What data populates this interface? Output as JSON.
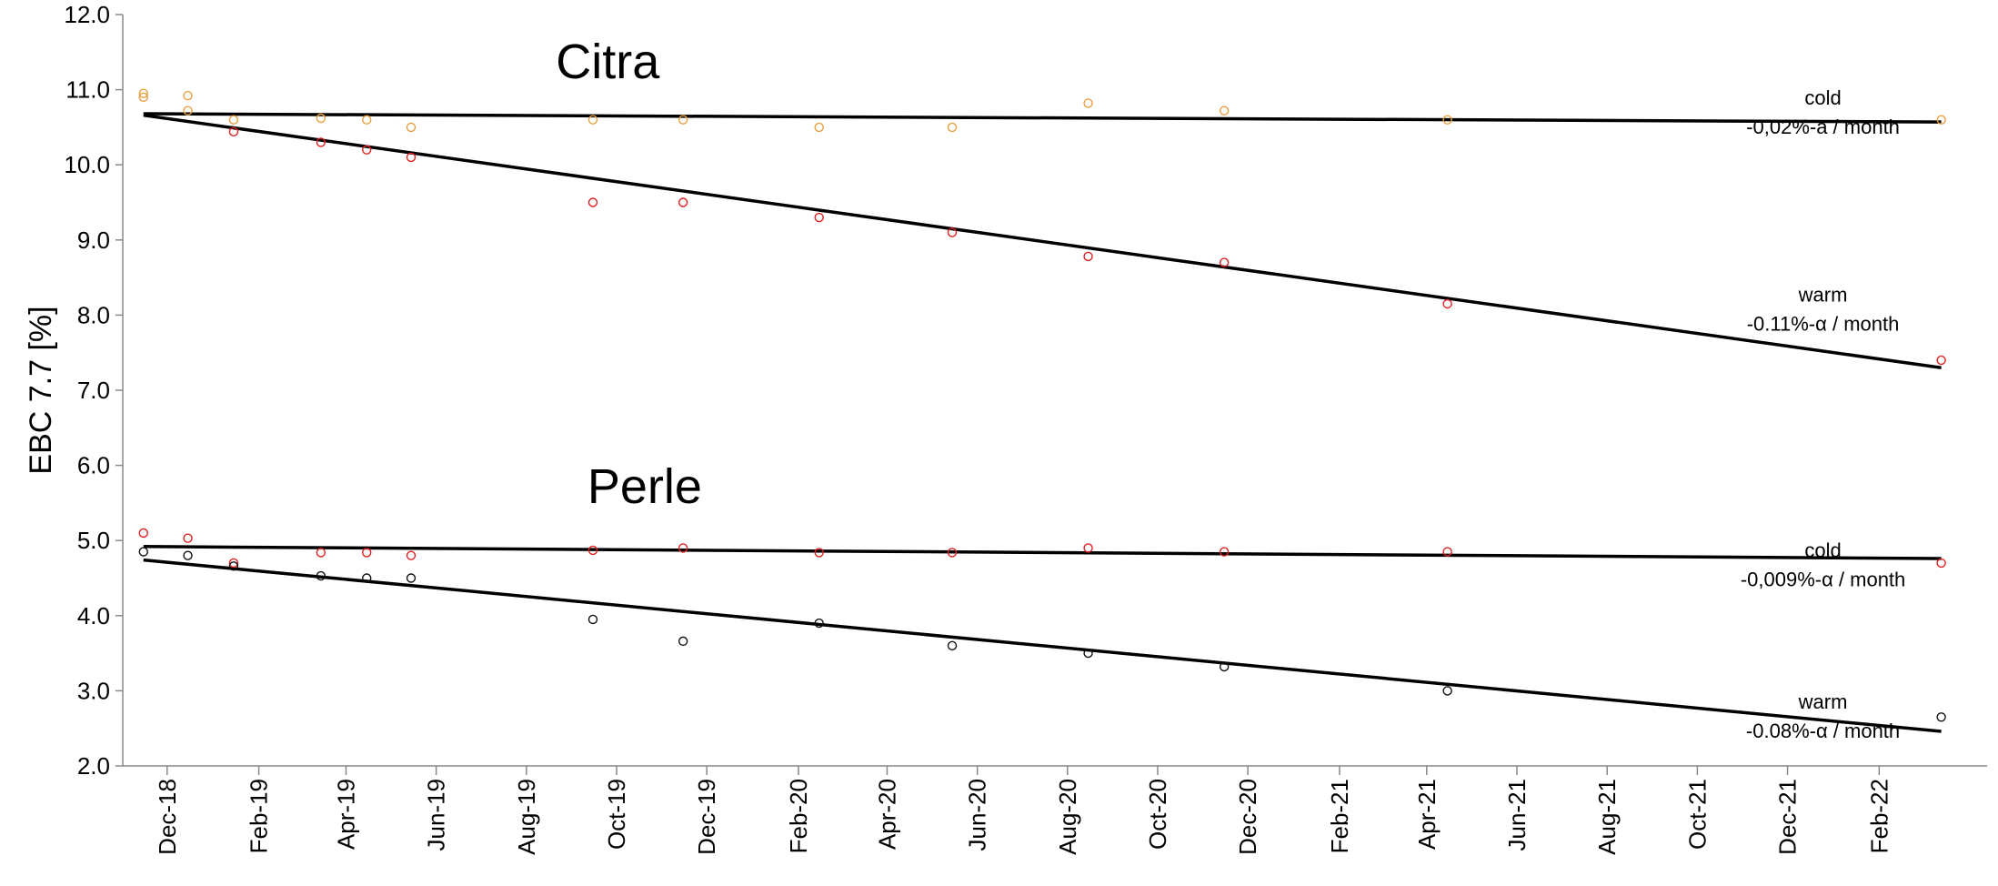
{
  "chart_data": {
    "type": "scatter",
    "ylabel": "EBC 7.7 [%]",
    "ylim": [
      2.0,
      12.0
    ],
    "yticks": [
      "2.0",
      "3.0",
      "4.0",
      "5.0",
      "6.0",
      "7.0",
      "8.0",
      "9.0",
      "10.0",
      "11.0",
      "12.0"
    ],
    "xticks": [
      "Dec-18",
      "Feb-19",
      "Apr-19",
      "Jun-19",
      "Aug-19",
      "Oct-19",
      "Dec-19",
      "Feb-20",
      "Apr-20",
      "Jun-20",
      "Aug-20",
      "Oct-20",
      "Dec-20",
      "Feb-21",
      "Apr-21",
      "Jun-21",
      "Aug-21",
      "Oct-21",
      "Dec-21",
      "Feb-22"
    ],
    "xlim": [
      "2018-11-01",
      "2022-04-15"
    ],
    "grid": false,
    "groups": [
      {
        "title": "Citra",
        "title_x": "2019-09-25",
        "title_y": 11.15
      },
      {
        "title": "Perle",
        "title_x": "2019-10-20",
        "title_y": 5.5
      }
    ],
    "annotations": [
      {
        "lines": [
          "cold",
          "-0,02%-a / month"
        ],
        "x": "2021-12-25",
        "y": 10.8
      },
      {
        "lines": [
          "warm",
          "-0.11%-α / month"
        ],
        "x": "2021-12-25",
        "y": 8.18
      },
      {
        "lines": [
          "cold",
          "-0,009%-α / month"
        ],
        "x": "2021-12-25",
        "y": 4.78
      },
      {
        "lines": [
          "warm",
          "-0.08%-α / month"
        ],
        "x": "2021-12-25",
        "y": 2.76
      }
    ],
    "series": [
      {
        "color": "#E8A040",
        "points": [
          [
            "2018-11-15",
            10.95
          ],
          [
            "2018-11-15",
            10.9
          ],
          [
            "2018-12-15",
            10.92
          ],
          [
            "2018-12-15",
            10.72
          ],
          [
            "2019-01-15",
            10.6
          ],
          [
            "2019-03-15",
            10.62
          ],
          [
            "2019-04-15",
            10.6
          ],
          [
            "2019-05-15",
            10.5
          ],
          [
            "2019-09-15",
            10.6
          ],
          [
            "2019-11-15",
            10.6
          ],
          [
            "2020-02-15",
            10.5
          ],
          [
            "2020-05-15",
            10.5
          ],
          [
            "2020-08-15",
            10.82
          ],
          [
            "2020-11-15",
            10.72
          ],
          [
            "2021-04-15",
            10.6
          ],
          [
            "2022-03-15",
            10.6
          ]
        ],
        "trend": [
          [
            "2018-11-15",
            10.68
          ],
          [
            "2022-03-15",
            10.57
          ]
        ]
      },
      {
        "color": "#E02020",
        "points": [
          [
            "2019-01-15",
            10.44
          ],
          [
            "2019-03-15",
            10.3
          ],
          [
            "2019-04-15",
            10.2
          ],
          [
            "2019-05-15",
            10.1
          ],
          [
            "2019-09-15",
            9.5
          ],
          [
            "2019-11-15",
            9.5
          ],
          [
            "2020-02-15",
            9.3
          ],
          [
            "2020-05-15",
            9.1
          ],
          [
            "2020-08-15",
            8.78
          ],
          [
            "2020-11-15",
            8.7
          ],
          [
            "2021-04-15",
            8.15
          ],
          [
            "2022-03-15",
            7.4
          ]
        ],
        "trend": [
          [
            "2018-11-15",
            10.66
          ],
          [
            "2022-03-15",
            7.3
          ]
        ]
      },
      {
        "color": "#E02020",
        "points": [
          [
            "2018-11-15",
            5.1
          ],
          [
            "2018-12-15",
            5.03
          ],
          [
            "2019-01-15",
            4.7
          ],
          [
            "2019-03-15",
            4.84
          ],
          [
            "2019-04-15",
            4.84
          ],
          [
            "2019-05-15",
            4.8
          ],
          [
            "2019-09-15",
            4.87
          ],
          [
            "2019-11-15",
            4.9
          ],
          [
            "2020-02-15",
            4.84
          ],
          [
            "2020-05-15",
            4.84
          ],
          [
            "2020-08-15",
            4.9
          ],
          [
            "2020-11-15",
            4.85
          ],
          [
            "2021-04-15",
            4.85
          ],
          [
            "2022-03-15",
            4.7
          ]
        ],
        "trend": [
          [
            "2018-11-15",
            4.92
          ],
          [
            "2022-03-15",
            4.76
          ]
        ]
      },
      {
        "color": "#111111",
        "points": [
          [
            "2018-11-15",
            4.85
          ],
          [
            "2018-12-15",
            4.8
          ],
          [
            "2019-01-15",
            4.66
          ],
          [
            "2019-03-15",
            4.53
          ],
          [
            "2019-04-15",
            4.5
          ],
          [
            "2019-05-15",
            4.5
          ],
          [
            "2019-09-15",
            3.95
          ],
          [
            "2019-11-15",
            3.66
          ],
          [
            "2020-02-15",
            3.9
          ],
          [
            "2020-05-15",
            3.6
          ],
          [
            "2020-08-15",
            3.5
          ],
          [
            "2020-11-15",
            3.32
          ],
          [
            "2021-04-15",
            3.0
          ],
          [
            "2022-03-15",
            2.65
          ]
        ],
        "trend": [
          [
            "2018-11-15",
            4.74
          ],
          [
            "2022-03-15",
            2.46
          ]
        ]
      }
    ]
  }
}
